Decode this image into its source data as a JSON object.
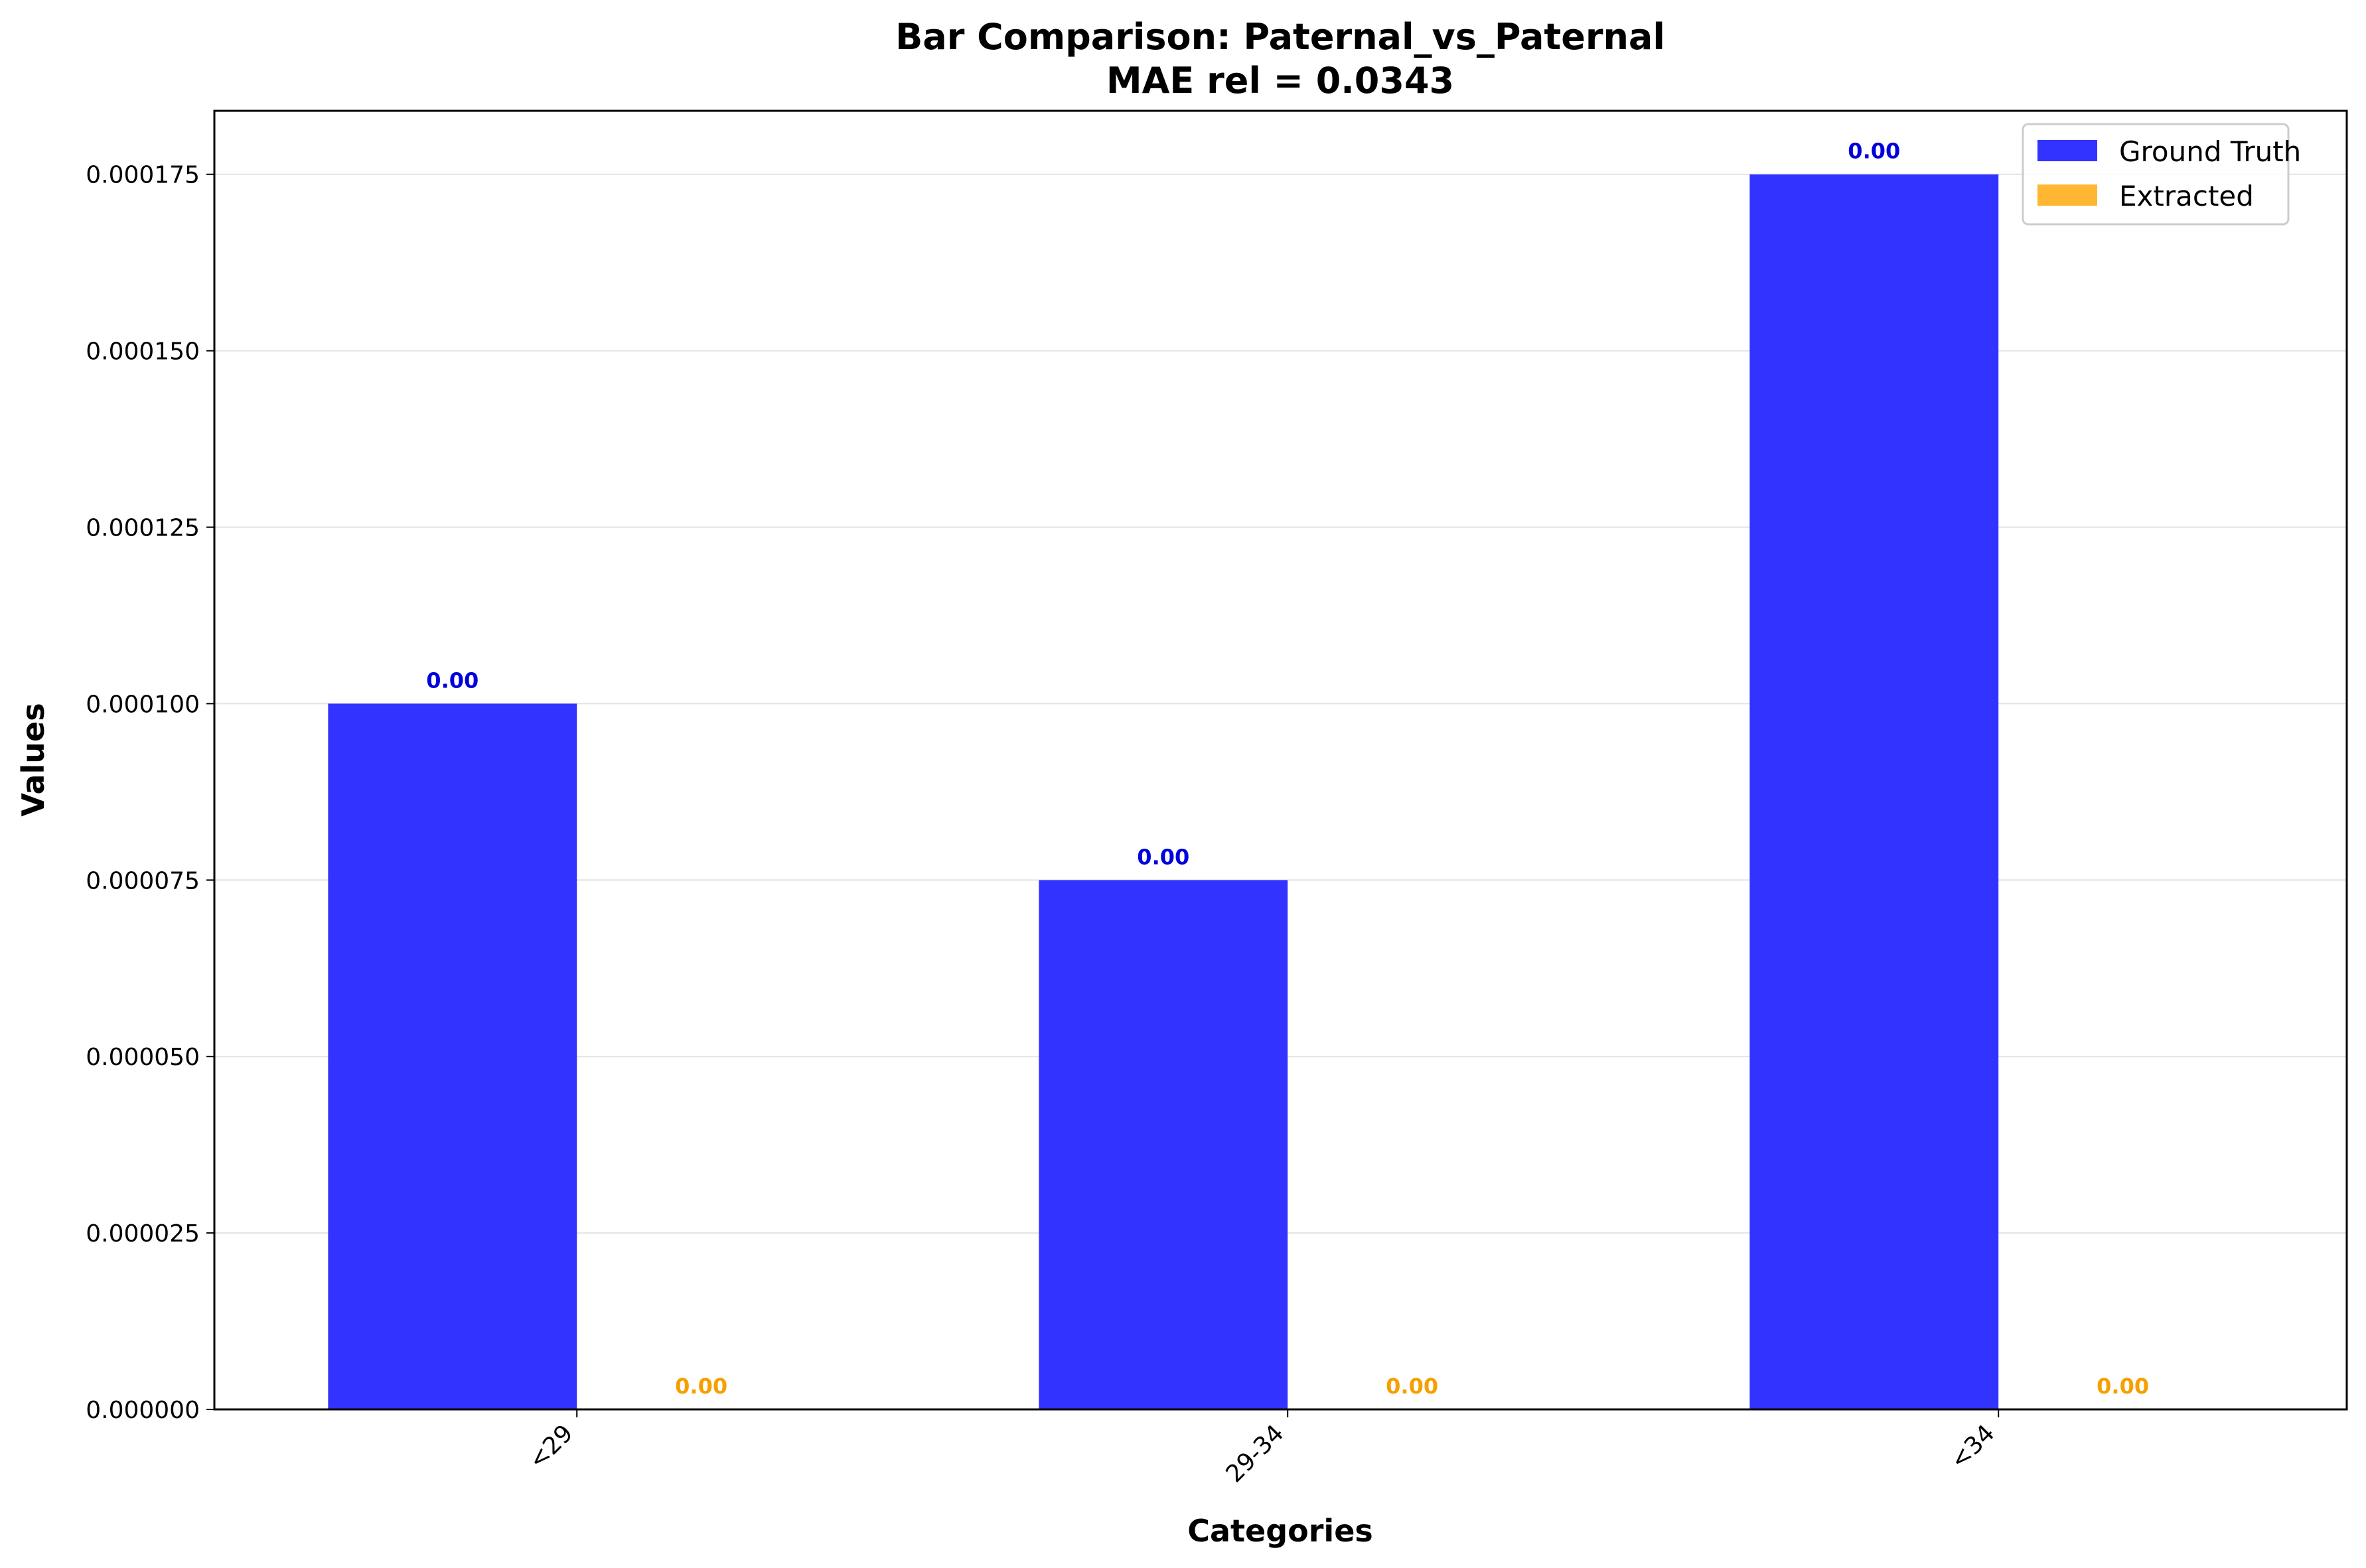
{
  "chart_data": {
    "type": "bar",
    "title": "Bar Comparison: Paternal_vs_Paternal",
    "subtitle": "MAE rel = 0.0343",
    "xlabel": "Categories",
    "ylabel": "Values",
    "categories": [
      "<29",
      "29-34",
      "<34"
    ],
    "ylim": [
      0,
      0.000184
    ],
    "yticks": [
      0,
      2.5e-05,
      5e-05,
      7.5e-05,
      0.0001,
      0.000125,
      0.00015,
      0.000175
    ],
    "ytick_labels": [
      "0.000000",
      "0.000025",
      "0.000050",
      "0.000075",
      "0.000100",
      "0.000125",
      "0.000150",
      "0.000175"
    ],
    "grid": "y",
    "legend_position": "top-right",
    "series": [
      {
        "name": "Ground Truth",
        "color": "#3333ff",
        "label_color": "#0000dd",
        "values": [
          0.0001,
          7.5e-05,
          0.000175
        ],
        "data_labels": [
          "0.00",
          "0.00",
          "0.00"
        ]
      },
      {
        "name": "Extracted",
        "color": "#ffb733",
        "label_color": "#f5a000",
        "values": [
          0,
          0,
          0
        ],
        "data_labels": [
          "0.00",
          "0.00",
          "0.00"
        ]
      }
    ]
  }
}
